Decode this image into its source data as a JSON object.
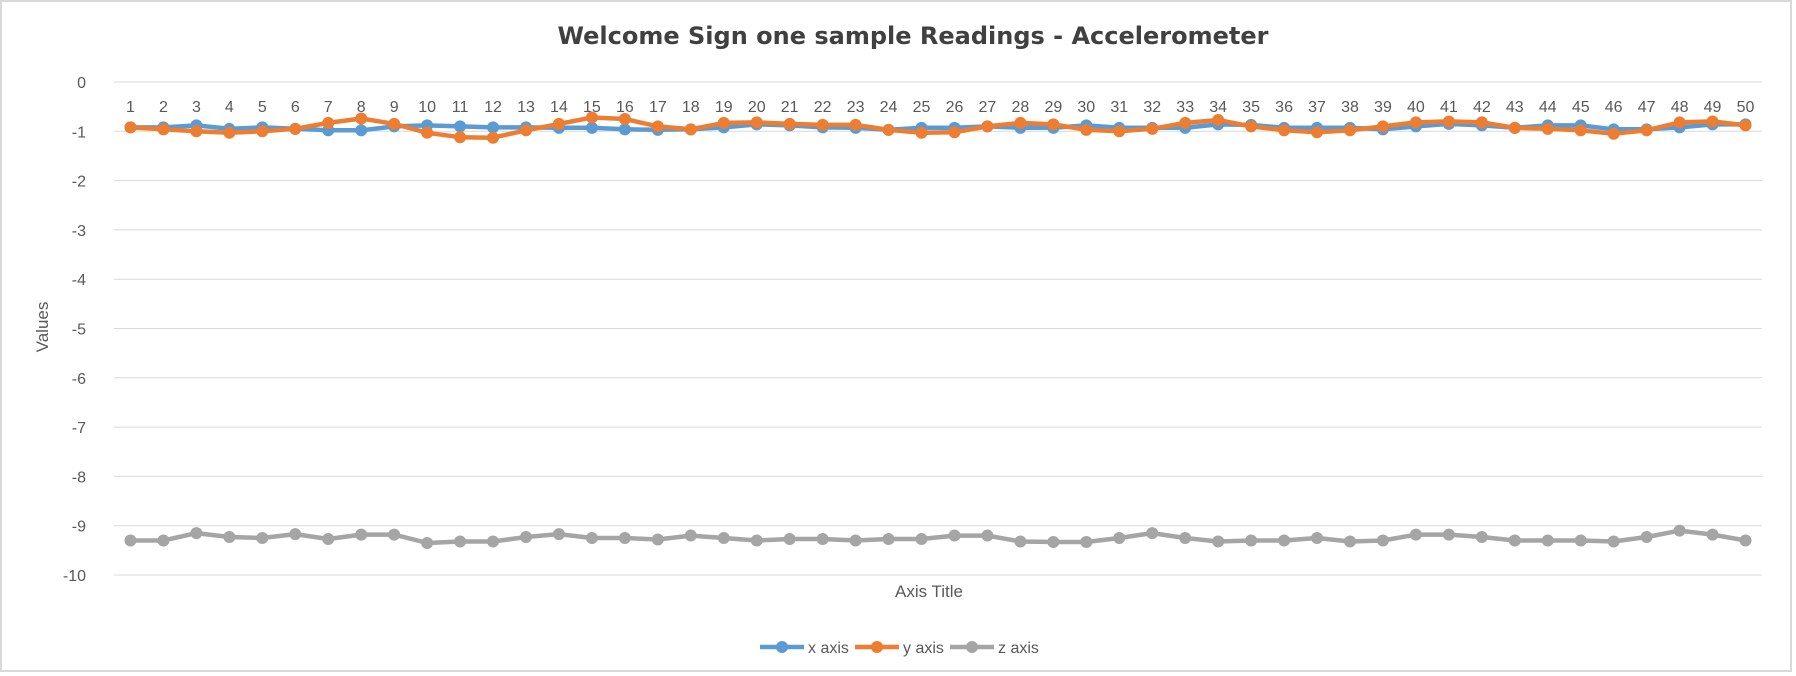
{
  "chart_data": {
    "type": "line",
    "title": "Welcome Sign one sample Readings - Accelerometer",
    "xlabel": "Axis Title",
    "ylabel": "Values",
    "ylim": [
      -10,
      0
    ],
    "yticks": [
      0,
      -1,
      -2,
      -3,
      -4,
      -5,
      -6,
      -7,
      -8,
      -9,
      -10
    ],
    "x_axis_position": "top",
    "grid": true,
    "legend": "bottom",
    "categories": [
      "1",
      "2",
      "3",
      "4",
      "5",
      "6",
      "7",
      "8",
      "9",
      "10",
      "11",
      "12",
      "13",
      "14",
      "15",
      "16",
      "17",
      "18",
      "19",
      "20",
      "21",
      "22",
      "23",
      "24",
      "25",
      "26",
      "27",
      "28",
      "29",
      "30",
      "31",
      "32",
      "33",
      "34",
      "35",
      "36",
      "37",
      "38",
      "39",
      "40",
      "41",
      "42",
      "43",
      "44",
      "45",
      "46",
      "47",
      "48",
      "49",
      "50"
    ],
    "series": [
      {
        "name": "x axis",
        "color": "#5b9bd5",
        "values": [
          -0.92,
          -0.92,
          -0.88,
          -0.95,
          -0.92,
          -0.95,
          -0.98,
          -0.98,
          -0.9,
          -0.88,
          -0.9,
          -0.92,
          -0.92,
          -0.93,
          -0.93,
          -0.96,
          -0.97,
          -0.96,
          -0.92,
          -0.86,
          -0.88,
          -0.92,
          -0.93,
          -0.97,
          -0.93,
          -0.93,
          -0.9,
          -0.93,
          -0.93,
          -0.88,
          -0.93,
          -0.93,
          -0.93,
          -0.86,
          -0.87,
          -0.93,
          -0.93,
          -0.93,
          -0.96,
          -0.9,
          -0.85,
          -0.88,
          -0.93,
          -0.88,
          -0.88,
          -0.96,
          -0.96,
          -0.92,
          -0.86,
          -0.86
        ]
      },
      {
        "name": "y axis",
        "color": "#ed7d31",
        "values": [
          -0.92,
          -0.96,
          -1.0,
          -1.03,
          -1.0,
          -0.95,
          -0.83,
          -0.74,
          -0.85,
          -1.03,
          -1.12,
          -1.13,
          -0.98,
          -0.85,
          -0.72,
          -0.75,
          -0.9,
          -0.96,
          -0.83,
          -0.82,
          -0.85,
          -0.87,
          -0.87,
          -0.97,
          -1.03,
          -1.02,
          -0.9,
          -0.83,
          -0.86,
          -0.97,
          -1.0,
          -0.95,
          -0.83,
          -0.77,
          -0.9,
          -0.98,
          -1.02,
          -0.98,
          -0.9,
          -0.82,
          -0.8,
          -0.82,
          -0.93,
          -0.95,
          -0.98,
          -1.05,
          -0.98,
          -0.82,
          -0.8,
          -0.88
        ]
      },
      {
        "name": "z axis",
        "color": "#a5a5a5",
        "values": [
          -9.3,
          -9.3,
          -9.15,
          -9.23,
          -9.25,
          -9.17,
          -9.27,
          -9.18,
          -9.18,
          -9.35,
          -9.32,
          -9.32,
          -9.23,
          -9.17,
          -9.25,
          -9.25,
          -9.28,
          -9.2,
          -9.25,
          -9.3,
          -9.27,
          -9.27,
          -9.3,
          -9.27,
          -9.27,
          -9.2,
          -9.2,
          -9.32,
          -9.33,
          -9.33,
          -9.25,
          -9.15,
          -9.25,
          -9.32,
          -9.3,
          -9.3,
          -9.25,
          -9.32,
          -9.3,
          -9.18,
          -9.18,
          -9.23,
          -9.3,
          -9.3,
          -9.3,
          -9.32,
          -9.23,
          -9.1,
          -9.18,
          -9.3
        ]
      }
    ]
  }
}
